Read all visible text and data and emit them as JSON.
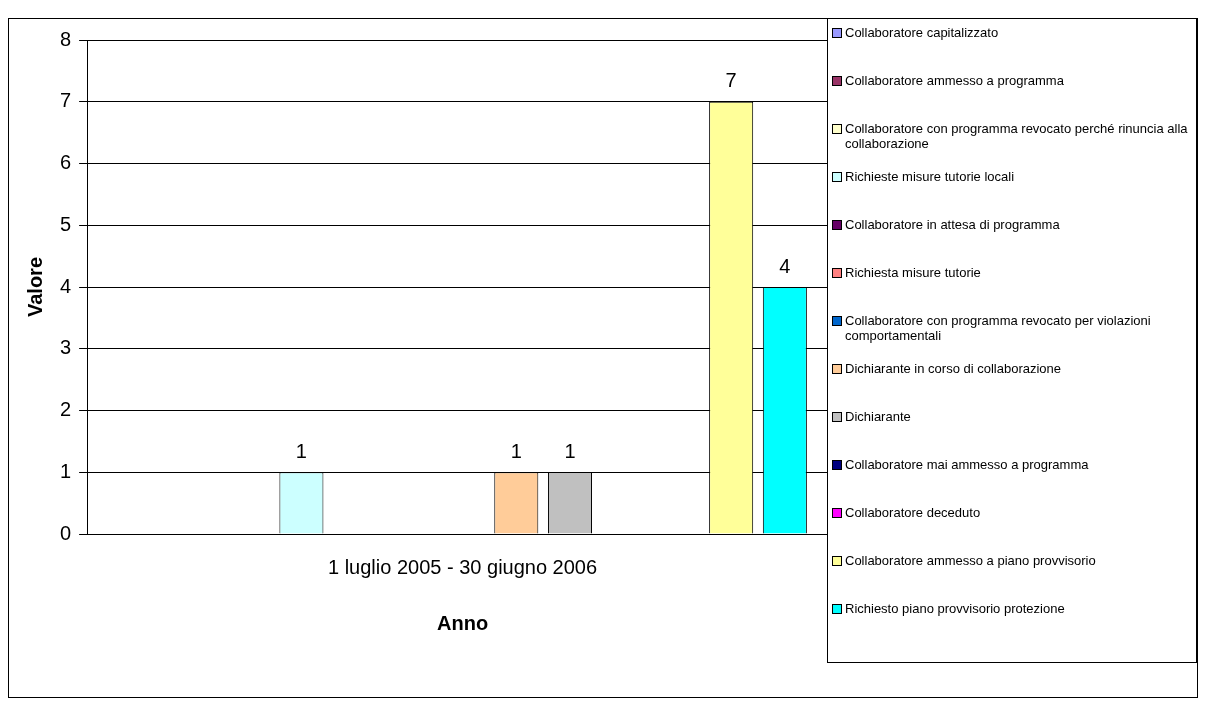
{
  "chart_data": {
    "type": "bar",
    "xlabel": "Anno",
    "ylabel": "Valore",
    "categories": [
      "1 luglio 2005 - 30 giugno 2006"
    ],
    "series": [
      {
        "name": "Collaboratore capitalizzato",
        "color": "#9999ff",
        "values": [
          null
        ]
      },
      {
        "name": "Collaboratore ammesso a programma",
        "color": "#993366",
        "values": [
          null
        ]
      },
      {
        "name": "Collaboratore con programma revocato perché rinuncia alla collaborazione",
        "color": "#ffffcc",
        "values": [
          null
        ]
      },
      {
        "name": "Richieste misure tutorie locali",
        "color": "#ccffff",
        "values": [
          1
        ]
      },
      {
        "name": "Collaboratore in attesa di programma",
        "color": "#660066",
        "values": [
          null
        ]
      },
      {
        "name": "Richiesta misure tutorie",
        "color": "#ff8080",
        "values": [
          null
        ]
      },
      {
        "name": "Collaboratore con programma revocato per violazioni comportamentali",
        "color": "#0066cc",
        "values": [
          null
        ]
      },
      {
        "name": "Dichiarante in corso di collaborazione",
        "color": "#ffcc99",
        "values": [
          1
        ]
      },
      {
        "name": "Dichiarante",
        "color": "#c0c0c0",
        "values": [
          1
        ]
      },
      {
        "name": "Collaboratore mai ammesso a programma",
        "color": "#000080",
        "values": [
          null
        ]
      },
      {
        "name": "Collaboratore deceduto",
        "color": "#ff00ff",
        "values": [
          null
        ]
      },
      {
        "name": "Collaboratore ammesso a piano provvisorio",
        "color": "#ffff99",
        "values": [
          7
        ]
      },
      {
        "name": "Richiesto piano provvisorio protezione",
        "color": "#00ffff",
        "values": [
          4
        ]
      }
    ],
    "ylim": [
      0,
      8
    ],
    "yticks": [
      0,
      1,
      2,
      3,
      4,
      5,
      6,
      7,
      8
    ],
    "grid": "y",
    "legend": "right",
    "data_labels": true
  }
}
